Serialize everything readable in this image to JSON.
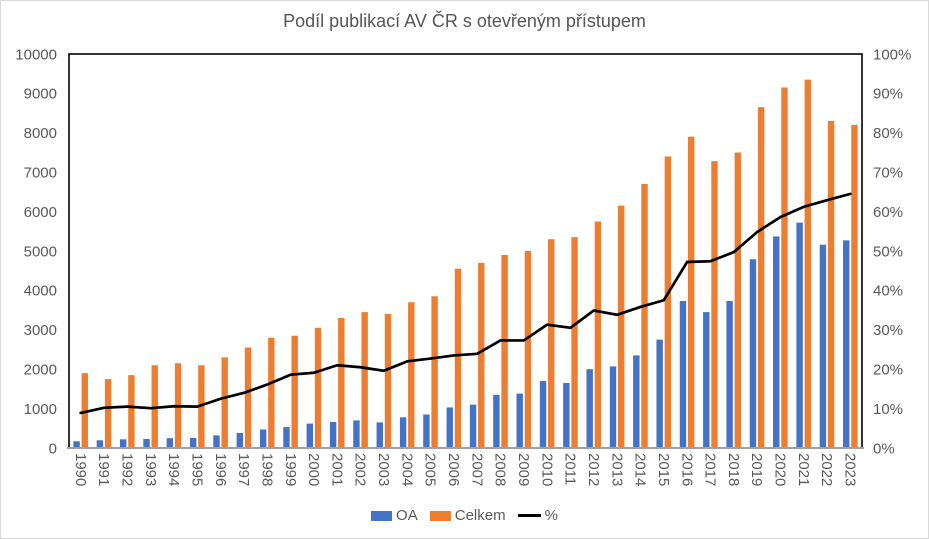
{
  "chart_data": {
    "type": "combo-bar-line",
    "title": "Podíl publikací AV ČR s otevřeným přístupem",
    "categories": [
      1990,
      1991,
      1992,
      1993,
      1994,
      1995,
      1996,
      1997,
      1998,
      1999,
      2000,
      2001,
      2002,
      2003,
      2004,
      2005,
      2006,
      2007,
      2008,
      2009,
      2010,
      2011,
      2012,
      2013,
      2014,
      2015,
      2016,
      2017,
      2018,
      2019,
      2020,
      2021,
      2022,
      2023
    ],
    "series": [
      {
        "name": "OA",
        "type": "bar",
        "axis": "left",
        "color": "#4472C4",
        "values": [
          170,
          195,
          220,
          230,
          250,
          255,
          320,
          380,
          470,
          530,
          620,
          660,
          700,
          650,
          780,
          850,
          1030,
          1100,
          1350,
          1380,
          1700,
          1650,
          2000,
          2070,
          2350,
          2750,
          3730,
          3450,
          3730,
          4790,
          5370,
          5720,
          5160,
          5270
        ]
      },
      {
        "name": "Celkem",
        "type": "bar",
        "axis": "left",
        "color": "#ED7D31",
        "values": [
          1900,
          1750,
          1850,
          2100,
          2150,
          2100,
          2300,
          2550,
          2800,
          2850,
          3050,
          3300,
          3450,
          3400,
          3700,
          3850,
          4550,
          4700,
          4900,
          5000,
          5300,
          5350,
          5750,
          6150,
          6700,
          7400,
          7900,
          7280,
          7500,
          8650,
          9150,
          9350,
          8300,
          8200
        ]
      },
      {
        "name": "%",
        "type": "line",
        "axis": "right",
        "color": "#000000",
        "values": [
          8.9,
          10.2,
          10.5,
          10.1,
          10.6,
          10.5,
          12.5,
          14.0,
          16.1,
          18.6,
          19.1,
          21.0,
          20.5,
          19.6,
          22.0,
          22.7,
          23.5,
          23.9,
          27.3,
          27.3,
          31.3,
          30.5,
          34.9,
          33.8,
          35.8,
          37.5,
          47.2,
          47.4,
          49.7,
          54.8,
          58.6,
          61.2,
          62.9,
          64.5
        ]
      }
    ],
    "left_axis": {
      "min": 0,
      "max": 10000,
      "step": 1000
    },
    "right_axis": {
      "min": 0,
      "max": 100,
      "step": 10,
      "suffix": "%"
    },
    "legend_position": "bottom"
  },
  "styles": {
    "axis_text_color": "#595959",
    "title_color": "#555555",
    "plot_border_color": "#000000",
    "category_axis_color": "#a0a0a0",
    "chart_border_color": "#d9d9d9",
    "background": "#ffffff"
  }
}
